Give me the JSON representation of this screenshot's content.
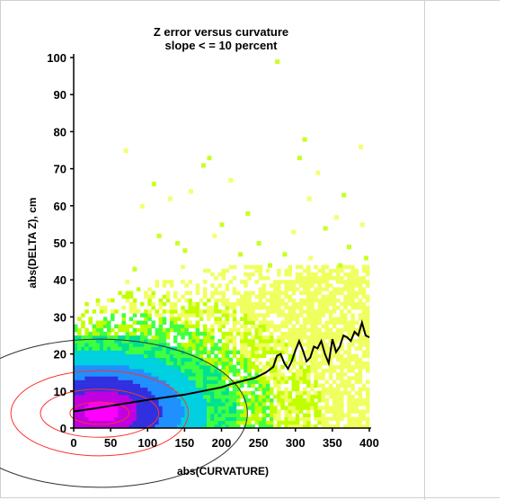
{
  "chart_data": {
    "type": "heatmap",
    "title": "Z error versus curvature",
    "subtitle": "slope < = 10 percent",
    "xlabel": "abs(CURVATURE)",
    "ylabel": "abs(DELTA Z), cm",
    "xlim": [
      0,
      400
    ],
    "ylim": [
      0,
      100
    ],
    "xticks": [
      "0",
      "50",
      "100",
      "150",
      "200",
      "250",
      "300",
      "350",
      "400"
    ],
    "yticks": [
      "0",
      "10",
      "20",
      "30",
      "40",
      "50",
      "60",
      "70",
      "80",
      "90",
      "100"
    ],
    "grid": false,
    "colorscale": [
      "#ff00ff",
      "#c000e0",
      "#3030e0",
      "#2090ff",
      "#00d0e0",
      "#00e090",
      "#40ff40",
      "#c0ff00",
      "#f0ff60"
    ],
    "density_core": {
      "x": 35,
      "y": 4
    },
    "contours": [
      {
        "color": "#ff3030",
        "levels": [
          "high",
          "mid",
          "low"
        ]
      },
      {
        "color": "#303030",
        "levels": [
          "outer"
        ]
      }
    ],
    "mean_line": {
      "name": "",
      "color": "#000000",
      "points": [
        [
          0,
          4.5
        ],
        [
          25,
          5.2
        ],
        [
          50,
          6.0
        ],
        [
          75,
          6.8
        ],
        [
          100,
          7.6
        ],
        [
          125,
          8.3
        ],
        [
          150,
          9.0
        ],
        [
          175,
          10.0
        ],
        [
          200,
          11.0
        ],
        [
          215,
          12.0
        ],
        [
          230,
          12.8
        ],
        [
          245,
          13.5
        ],
        [
          260,
          15.0
        ],
        [
          270,
          16.5
        ],
        [
          275,
          19.5
        ],
        [
          280,
          20.0
        ],
        [
          285,
          17.5
        ],
        [
          290,
          16.0
        ],
        [
          295,
          18.0
        ],
        [
          300,
          21.0
        ],
        [
          305,
          23.5
        ],
        [
          310,
          21.0
        ],
        [
          315,
          18.0
        ],
        [
          320,
          19.0
        ],
        [
          325,
          22.0
        ],
        [
          330,
          21.5
        ],
        [
          335,
          23.5
        ],
        [
          340,
          20.0
        ],
        [
          345,
          17.5
        ],
        [
          350,
          24.0
        ],
        [
          355,
          20.5
        ],
        [
          360,
          22.0
        ],
        [
          365,
          25.0
        ],
        [
          370,
          24.5
        ],
        [
          375,
          23.5
        ],
        [
          380,
          26.0
        ],
        [
          385,
          25.0
        ],
        [
          390,
          28.5
        ],
        [
          395,
          25.0
        ],
        [
          400,
          24.5
        ]
      ]
    },
    "outliers": [
      [
        70,
        75
      ],
      [
        92,
        60
      ],
      [
        108,
        66
      ],
      [
        130,
        62
      ],
      [
        158,
        64
      ],
      [
        175,
        71
      ],
      [
        183,
        73
      ],
      [
        200,
        55
      ],
      [
        212,
        67
      ],
      [
        235,
        58
      ],
      [
        275,
        99
      ],
      [
        305,
        73
      ],
      [
        312,
        78
      ],
      [
        318,
        62
      ],
      [
        330,
        69
      ],
      [
        355,
        57
      ],
      [
        365,
        63
      ],
      [
        388,
        76
      ],
      [
        390,
        55
      ],
      [
        115,
        52
      ],
      [
        140,
        50
      ],
      [
        190,
        52
      ],
      [
        250,
        50
      ],
      [
        285,
        47
      ],
      [
        297,
        53
      ],
      [
        340,
        54
      ],
      [
        372,
        49
      ],
      [
        395,
        46
      ],
      [
        150,
        48
      ],
      [
        225,
        47
      ],
      [
        265,
        44
      ],
      [
        320,
        46
      ],
      [
        360,
        44
      ],
      [
        380,
        41
      ],
      [
        82,
        43
      ]
    ]
  }
}
